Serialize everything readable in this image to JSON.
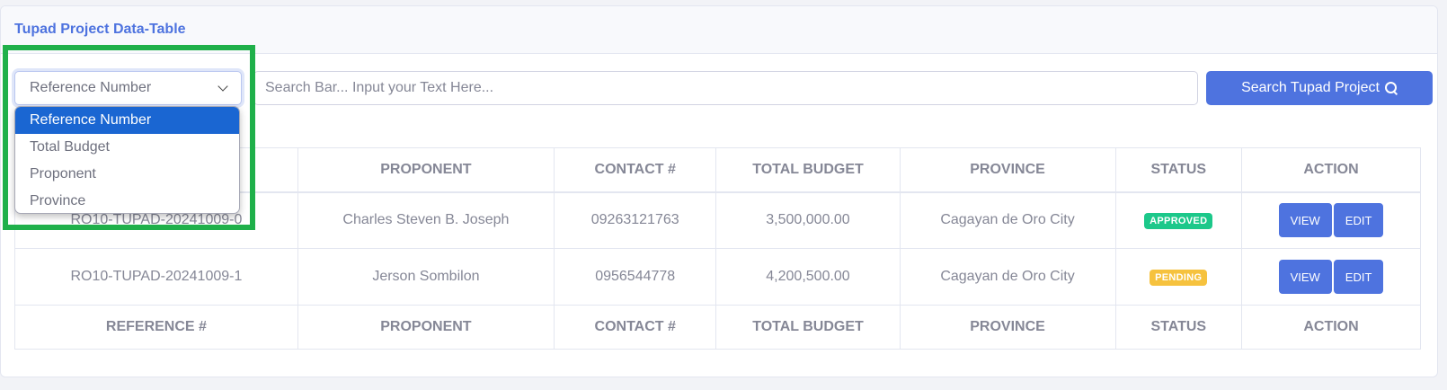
{
  "card": {
    "title": "Tupad Project Data-Table"
  },
  "filter": {
    "selected": "Reference Number",
    "options": [
      "Reference Number",
      "Total Budget",
      "Proponent",
      "Province"
    ]
  },
  "search": {
    "placeholder": "Search Bar... Input your Text Here...",
    "button_label": "Search Tupad Project"
  },
  "table": {
    "headers": [
      "REFERENCE #",
      "PROPONENT",
      "CONTACT #",
      "TOTAL BUDGET",
      "PROVINCE",
      "STATUS",
      "ACTION"
    ],
    "rows": [
      {
        "reference": "RO10-TUPAD-20241009-0",
        "proponent": "Charles Steven B. Joseph",
        "contact": "09263121763",
        "total_budget": "3,500,000.00",
        "province": "Cagayan de Oro City",
        "status": "APPROVED",
        "view_label": "VIEW",
        "edit_label": "EDIT"
      },
      {
        "reference": "RO10-TUPAD-20241009-1",
        "proponent": "Jerson Sombilon",
        "contact": "0956544778",
        "total_budget": "4,200,500.00",
        "province": "Cagayan de Oro City",
        "status": "PENDING",
        "view_label": "VIEW",
        "edit_label": "EDIT"
      }
    ]
  },
  "colors": {
    "primary": "#4e73df",
    "approved": "#1cc88a",
    "pending": "#f6c23e",
    "highlight": "#1fb04a",
    "dropdown_selected": "#1a66d2"
  },
  "icons": {
    "search_button": "search-icon",
    "select": "chevron-down-icon"
  }
}
